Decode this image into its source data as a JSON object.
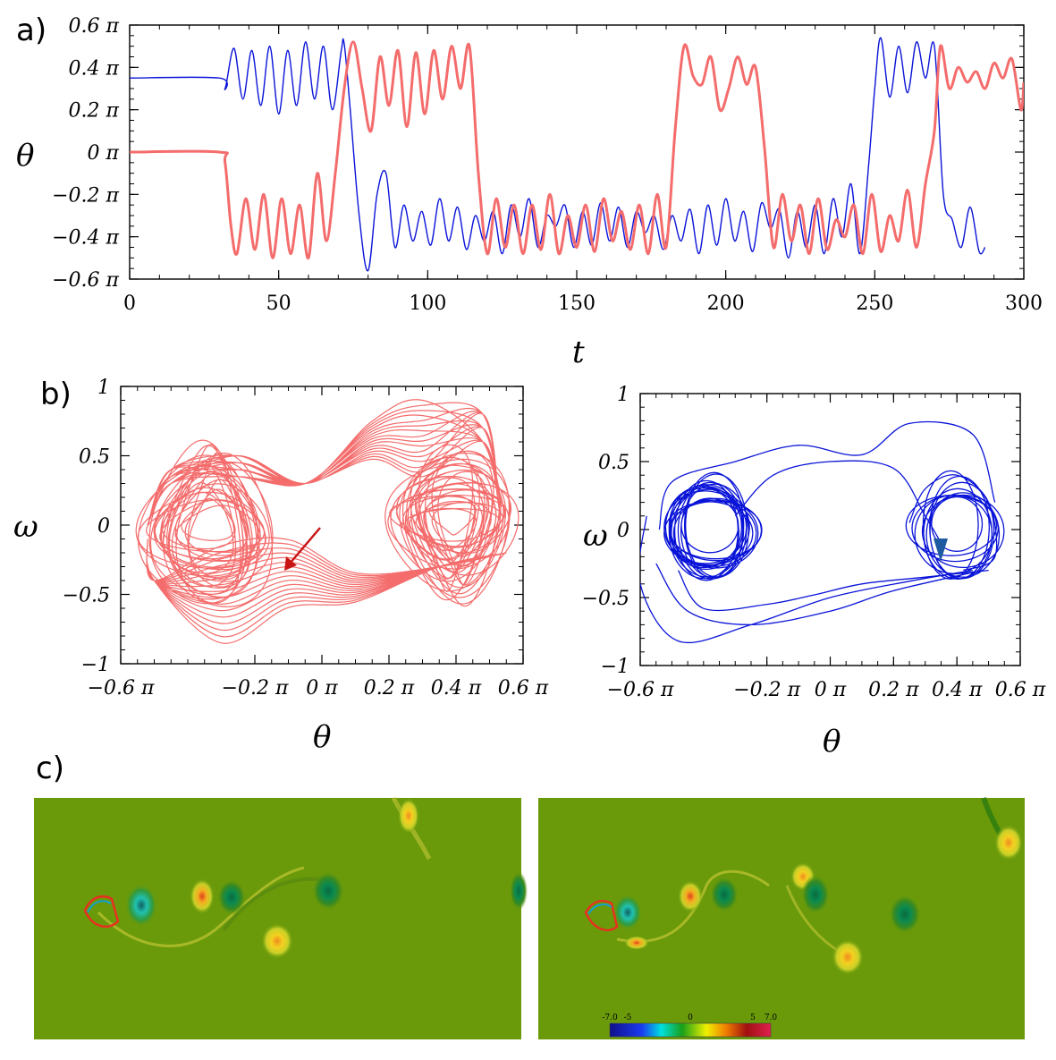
{
  "panels": {
    "a": "a)",
    "b": "b)",
    "c": "c)"
  },
  "colors": {
    "red": "#f46c6c",
    "blue": "#0a14d8",
    "arrow_red": "#c81414",
    "arrow_blue": "#1e5aa0",
    "field_bg": "#6a9a0a"
  },
  "chart_data": [
    {
      "type": "line",
      "panel": "a",
      "xlabel": "t",
      "ylabel": "θ",
      "xlim": [
        0,
        300
      ],
      "ylim": [
        -0.6,
        0.6
      ],
      "xticks": [
        "0",
        "50",
        "100",
        "150",
        "200",
        "250",
        "300"
      ],
      "yticks": [
        "0.6 π",
        "0.4 π",
        "0.2 π",
        "0 π",
        "−0.2 π",
        "−0.4 π",
        "−0.6 π"
      ],
      "series": [
        {
          "color": "blue",
          "x": [
            0,
            30,
            32,
            35,
            38,
            41,
            44,
            47,
            50,
            53,
            56,
            59,
            62,
            65,
            68,
            71,
            72,
            74,
            77,
            80,
            83,
            86,
            89,
            92,
            95,
            98,
            101,
            104,
            107,
            110,
            113,
            116,
            119,
            122,
            125,
            128,
            131,
            134,
            137,
            140,
            143,
            146,
            149,
            152,
            155,
            158,
            161,
            164,
            167,
            170,
            173,
            176,
            179,
            182,
            185,
            188,
            191,
            194,
            197,
            200,
            203,
            206,
            209,
            212,
            215,
            218,
            221,
            224,
            227,
            230,
            233,
            236,
            239,
            242,
            245,
            248,
            250,
            252,
            255,
            258,
            261,
            264,
            267,
            270,
            273,
            276,
            279,
            282,
            285,
            287
          ],
          "y": [
            0.35,
            0.35,
            0.3,
            0.49,
            0.25,
            0.48,
            0.22,
            0.5,
            0.18,
            0.48,
            0.22,
            0.52,
            0.25,
            0.5,
            0.2,
            0.48,
            0.51,
            0.2,
            -0.3,
            -0.56,
            -0.2,
            -0.1,
            -0.45,
            -0.25,
            -0.42,
            -0.28,
            -0.44,
            -0.22,
            -0.42,
            -0.26,
            -0.46,
            -0.3,
            -0.42,
            -0.28,
            -0.48,
            -0.25,
            -0.4,
            -0.22,
            -0.45,
            -0.3,
            -0.35,
            -0.25,
            -0.45,
            -0.28,
            -0.44,
            -0.24,
            -0.42,
            -0.26,
            -0.45,
            -0.28,
            -0.38,
            -0.3,
            -0.46,
            -0.3,
            -0.42,
            -0.27,
            -0.48,
            -0.25,
            -0.44,
            -0.22,
            -0.42,
            -0.28,
            -0.47,
            -0.24,
            -0.36,
            -0.27,
            -0.5,
            -0.28,
            -0.45,
            -0.25,
            -0.48,
            -0.22,
            -0.4,
            -0.15,
            -0.48,
            -0.05,
            0.3,
            0.54,
            0.26,
            0.5,
            0.28,
            0.52,
            0.35,
            0.5,
            -0.2,
            -0.32,
            -0.45,
            -0.26,
            -0.47,
            -0.45
          ]
        },
        {
          "color": "red",
          "x": [
            0,
            30,
            32,
            34,
            36,
            39,
            42,
            45,
            48,
            51,
            54,
            57,
            60,
            63,
            66,
            69,
            72,
            75,
            78,
            81,
            84,
            87,
            90,
            93,
            96,
            99,
            102,
            105,
            108,
            111,
            114,
            117,
            120,
            123,
            126,
            129,
            132,
            135,
            138,
            141,
            144,
            147,
            150,
            153,
            156,
            159,
            162,
            165,
            168,
            171,
            174,
            177,
            180,
            183,
            186,
            189,
            192,
            195,
            198,
            201,
            204,
            207,
            210,
            213,
            216,
            219,
            222,
            225,
            228,
            231,
            234,
            237,
            240,
            243,
            246,
            249,
            252,
            255,
            258,
            261,
            264,
            267,
            270,
            272,
            275,
            278,
            281,
            284,
            287,
            290,
            293,
            296,
            299,
            300
          ],
          "y": [
            0.0,
            0.0,
            -0.05,
            -0.35,
            -0.48,
            -0.22,
            -0.46,
            -0.2,
            -0.5,
            -0.22,
            -0.48,
            -0.25,
            -0.5,
            -0.1,
            -0.42,
            -0.1,
            0.3,
            0.52,
            0.3,
            0.1,
            0.45,
            0.22,
            0.48,
            0.12,
            0.47,
            0.18,
            0.48,
            0.25,
            0.5,
            0.3,
            0.5,
            -0.1,
            -0.48,
            -0.22,
            -0.45,
            -0.25,
            -0.48,
            -0.25,
            -0.46,
            -0.2,
            -0.48,
            -0.3,
            -0.45,
            -0.25,
            -0.47,
            -0.22,
            -0.42,
            -0.28,
            -0.46,
            -0.25,
            -0.48,
            -0.2,
            -0.45,
            0.1,
            0.5,
            0.36,
            0.32,
            0.45,
            0.2,
            0.3,
            0.45,
            0.32,
            0.4,
            0.02,
            -0.45,
            -0.2,
            -0.42,
            -0.25,
            -0.48,
            -0.22,
            -0.46,
            -0.32,
            -0.4,
            -0.25,
            -0.48,
            -0.2,
            -0.47,
            -0.3,
            -0.42,
            -0.18,
            -0.45,
            -0.15,
            0.1,
            0.5,
            0.3,
            0.4,
            0.33,
            0.38,
            0.3,
            0.42,
            0.35,
            0.44,
            0.2,
            0.33
          ]
        }
      ]
    },
    {
      "type": "line",
      "panel": "b-left",
      "xlabel": "θ",
      "ylabel": "ω",
      "xlim": [
        -0.6,
        0.6
      ],
      "ylim": [
        -1,
        1
      ],
      "xticks": [
        "−0.6 π",
        "−0.2 π",
        "0 π",
        "0.2 π",
        "0.4 π",
        "0.6 π"
      ],
      "yticks": [
        "1",
        "0.5",
        "0",
        "−0.5",
        "−1"
      ],
      "series": [
        {
          "color": "red",
          "description_type": "phase-portrait"
        }
      ]
    },
    {
      "type": "line",
      "panel": "b-right",
      "xlabel": "θ",
      "ylabel": "ω",
      "xlim": [
        -0.6,
        0.6
      ],
      "ylim": [
        -1,
        1
      ],
      "xticks": [
        "−0.6 π",
        "−0.2 π",
        "0 π",
        "0.2 π",
        "0.4 π",
        "0.6 π"
      ],
      "yticks": [
        "1",
        "0.5",
        "0",
        "−0.5",
        "−1"
      ],
      "series": [
        {
          "color": "blue",
          "description_type": "phase-portrait"
        }
      ]
    }
  ],
  "colorbar": {
    "ticks": [
      "-7.0",
      "-5",
      "0",
      "5",
      "7.0"
    ]
  }
}
